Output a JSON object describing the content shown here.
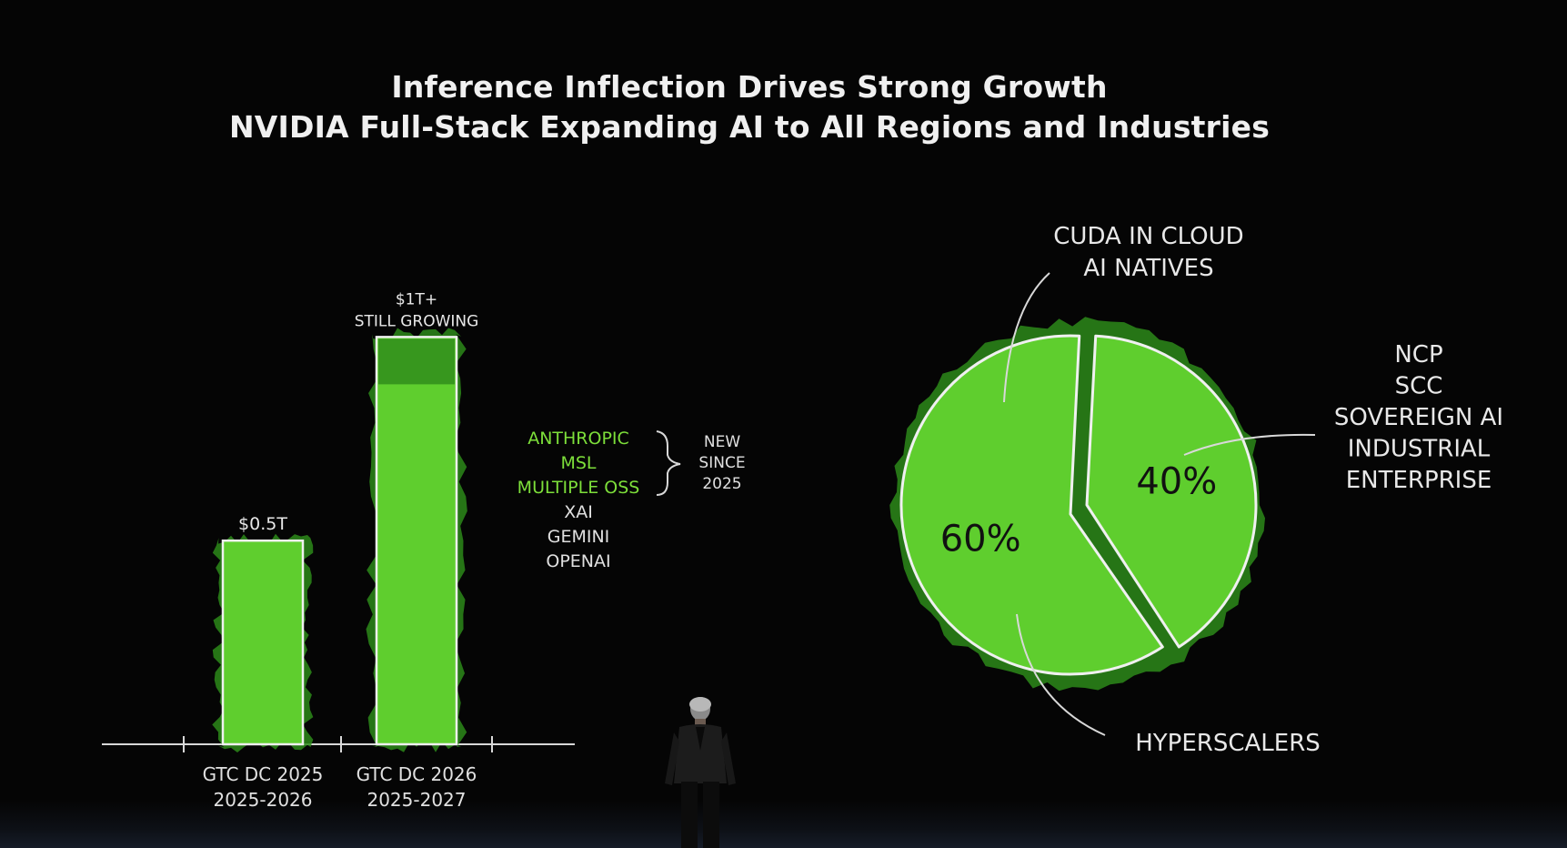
{
  "slide": {
    "title_line1": "Inference Inflection Drives Strong Growth",
    "title_line2": "NVIDIA Full-Stack Expanding AI to All Regions and Industries"
  },
  "colors": {
    "background": "#050505",
    "accent_green": "#5fce2e",
    "dark_green": "#2d8a1a",
    "label_green": "#7ddf3a",
    "text": "#e8e8e8"
  },
  "chart_data": [
    {
      "type": "bar",
      "categories": [
        [
          "GTC DC 2025",
          "2025-2026"
        ],
        [
          "GTC DC 2026",
          "2025-2027"
        ]
      ],
      "values": [
        0.5,
        1.0
      ],
      "unit": "$T",
      "data_labels": [
        [
          "$0.5T"
        ],
        [
          "$1T+",
          "STILL GROWING"
        ]
      ],
      "ylim": [
        0,
        1.05
      ],
      "grid": false,
      "annotation": {
        "new_customers": [
          "ANTHROPIC",
          "MSL",
          "MULTIPLE OSS"
        ],
        "new_note": [
          "NEW",
          "SINCE",
          "2025"
        ],
        "other_customers": [
          "XAI",
          "GEMINI",
          "OPENAI"
        ]
      }
    },
    {
      "type": "pie",
      "slices": [
        {
          "value": 60,
          "label": "60%",
          "callouts": [
            [
              "CUDA IN CLOUD",
              "AI NATIVES"
            ],
            [
              "HYPERSCALERS"
            ]
          ]
        },
        {
          "value": 40,
          "label": "40%",
          "callouts": [
            [
              "NCP",
              "SCC",
              "SOVEREIGN AI",
              "INDUSTRIAL",
              "ENTERPRISE"
            ]
          ]
        }
      ]
    }
  ]
}
